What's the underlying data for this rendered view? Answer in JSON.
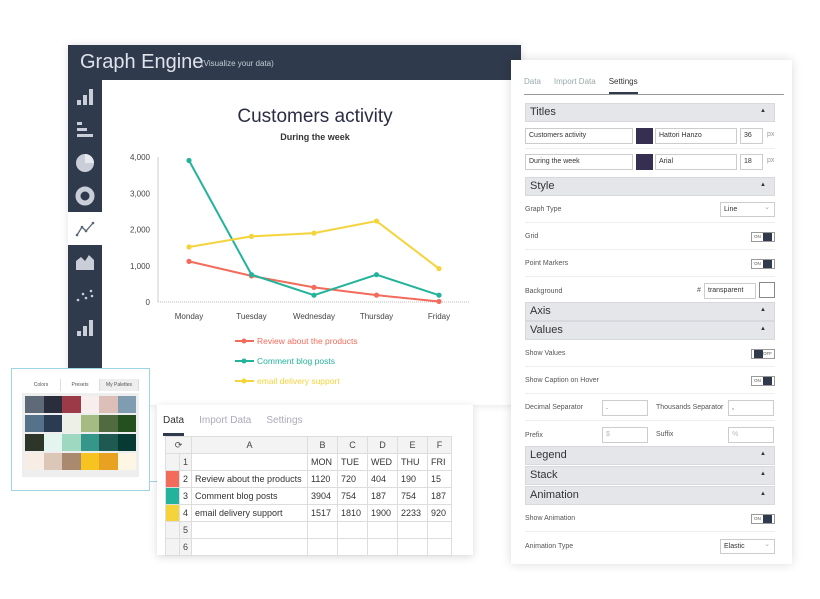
{
  "app": {
    "title": "Graph Engine",
    "subtitle": "(Visualize your data)"
  },
  "sidebar": {
    "items": [
      {
        "icon": "bar-chart-icon"
      },
      {
        "icon": "horizontal-bar-icon"
      },
      {
        "icon": "pie-chart-icon"
      },
      {
        "icon": "donut-chart-icon"
      },
      {
        "icon": "line-chart-icon",
        "active": true
      },
      {
        "icon": "area-chart-icon"
      },
      {
        "icon": "scatter-chart-icon"
      },
      {
        "icon": "bar-chart-icon"
      }
    ]
  },
  "chart_data": {
    "type": "line",
    "title": "Customers activity",
    "subtitle": "During the week",
    "categories": [
      "Monday",
      "Tuesday",
      "Wednesday",
      "Thursday",
      "Friday"
    ],
    "yticks": [
      "0",
      "1,000",
      "2,000",
      "3,000",
      "4,000"
    ],
    "ylim": [
      0,
      4000
    ],
    "legend_position": "bottom",
    "series": [
      {
        "name": "Review about the products",
        "color": "#f26b5b",
        "values": [
          1120,
          720,
          404,
          190,
          15
        ]
      },
      {
        "name": "Comment blog posts",
        "color": "#23b39b",
        "values": [
          3904,
          754,
          187,
          754,
          187
        ]
      },
      {
        "name": "email delivery support",
        "color": "#f5d33a",
        "values": [
          1517,
          1810,
          1900,
          2233,
          920
        ]
      }
    ]
  },
  "settings": {
    "tabs": [
      "Data",
      "Import Data",
      "Settings"
    ],
    "active_tab": "Settings",
    "titles": {
      "label": "Titles",
      "title": {
        "value": "Customers activity",
        "color": "#372f52",
        "font": "Hattori Hanzo",
        "size": "36",
        "unit": "px"
      },
      "subtitle": {
        "value": "During the week",
        "color": "#372f52",
        "font": "Arial",
        "size": "18",
        "unit": "px"
      }
    },
    "style": {
      "label": "Style",
      "graph_type_label": "Graph Type",
      "graph_type": "Line",
      "grid_label": "Grid",
      "grid": "ON",
      "markers_label": "Point Markers",
      "markers": "ON",
      "background_label": "Background",
      "hash": "#",
      "background": "transparent"
    },
    "axis": {
      "label": "Axis"
    },
    "values": {
      "label": "Values",
      "show_values_label": "Show Values",
      "show_values": "OFF",
      "caption_label": "Show Caption on Hover",
      "caption": "ON",
      "decimal_label": "Decimal Separator",
      "decimal": ".",
      "thousands_label": "Thousands Separator",
      "thousands": ",",
      "prefix_label": "Prefix",
      "prefix_placeholder": "$",
      "suffix_label": "Suffix",
      "suffix_placeholder": "%"
    },
    "legend": {
      "label": "Legend"
    },
    "stack": {
      "label": "Stack"
    },
    "animation": {
      "label": "Animation",
      "show_label": "Show Animation",
      "show": "ON",
      "type_label": "Animation Type",
      "type": "Elastic"
    }
  },
  "data_panel": {
    "tabs": [
      "Data",
      "Import Data",
      "Settings"
    ],
    "active_tab": "Data",
    "columns": [
      "A",
      "B",
      "C",
      "D",
      "E",
      "F"
    ],
    "rows": [
      {
        "n": "1",
        "cells": [
          "",
          "MON",
          "TUE",
          "WED",
          "THU",
          "FRI"
        ]
      },
      {
        "n": "2",
        "color": "#f26b5b",
        "cells": [
          "Review about the products",
          "1120",
          "720",
          "404",
          "190",
          "15"
        ]
      },
      {
        "n": "3",
        "color": "#23b39b",
        "cells": [
          "Comment blog posts",
          "3904",
          "754",
          "187",
          "754",
          "187"
        ]
      },
      {
        "n": "4",
        "color": "#f5d33a",
        "cells": [
          "email delivery support",
          "1517",
          "1810",
          "1900",
          "2233",
          "920"
        ]
      },
      {
        "n": "5",
        "cells": [
          "",
          "",
          "",
          "",
          "",
          ""
        ]
      },
      {
        "n": "6",
        "cells": [
          "",
          "",
          "",
          "",
          "",
          ""
        ]
      }
    ]
  },
  "palette": {
    "tabs": [
      "Colors",
      "Presets",
      "My Palettes"
    ],
    "active_tab": "My Palettes",
    "rows": [
      [
        "#5f6a79",
        "#2a2d3b",
        "#9c3a48",
        "#f7eeee",
        "#dcbfb8",
        "#7f9cb0"
      ],
      [
        "#56718a",
        "#2b3b52",
        "#edf0e6",
        "#a5bb84",
        "#516a3f",
        "#24501f"
      ],
      [
        "#2d3628",
        "#e4f4ee",
        "#9fd8c0",
        "#35968a",
        "#1f5a52",
        "#083a34"
      ],
      [
        "#f8ede4",
        "#dcc6b8",
        "#a98a6f",
        "#f6c320",
        "#e9a121",
        "#fdf6e4"
      ]
    ]
  }
}
